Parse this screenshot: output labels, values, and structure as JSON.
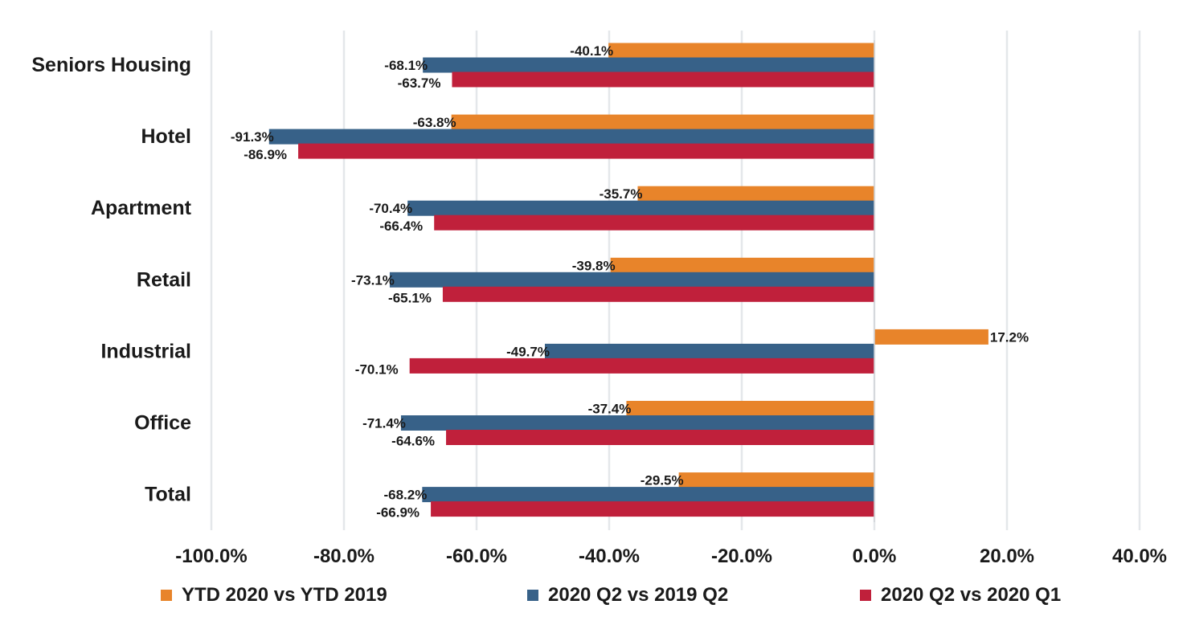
{
  "chart_data": {
    "type": "bar",
    "orientation": "horizontal",
    "categories": [
      "Seniors Housing",
      "Hotel",
      "Apartment",
      "Retail",
      "Industrial",
      "Office",
      "Total"
    ],
    "series": [
      {
        "name": "YTD 2020 vs YTD 2019",
        "color": "#E8842A",
        "values": [
          -40.1,
          -63.8,
          -35.7,
          -39.8,
          17.2,
          -37.4,
          -29.5
        ],
        "labels": [
          "-40.1%",
          "-63.8%",
          "-35.7%",
          "-39.8%",
          "17.2%",
          "-37.4%",
          "-29.5%"
        ]
      },
      {
        "name": "2020 Q2 vs 2019 Q2",
        "color": "#376188",
        "values": [
          -68.1,
          -91.3,
          -70.4,
          -73.1,
          -49.7,
          -71.4,
          -68.2
        ],
        "labels": [
          "-68.1%",
          "-91.3%",
          "-70.4%",
          "-73.1%",
          "-49.7%",
          "-71.4%",
          "-68.2%"
        ]
      },
      {
        "name": "2020 Q2 vs 2020 Q1",
        "color": "#C0203B",
        "values": [
          -63.7,
          -86.9,
          -66.4,
          -65.1,
          -70.1,
          -64.6,
          -66.9
        ],
        "labels": [
          "-63.7%",
          "-86.9%",
          "-66.4%",
          "-65.1%",
          "-70.1%",
          "-64.6%",
          "-66.9%"
        ]
      }
    ],
    "xlim": [
      -100,
      40
    ],
    "x_ticks": [
      -100,
      -80,
      -60,
      -40,
      -20,
      0,
      20,
      40
    ],
    "x_tick_labels": [
      "-100.0%",
      "-80.0%",
      "-60.0%",
      "-40.0%",
      "-20.0%",
      "0.0%",
      "20.0%",
      "40.0%"
    ],
    "grid": true,
    "legend_position": "bottom",
    "title": "",
    "xlabel": "",
    "ylabel": ""
  }
}
